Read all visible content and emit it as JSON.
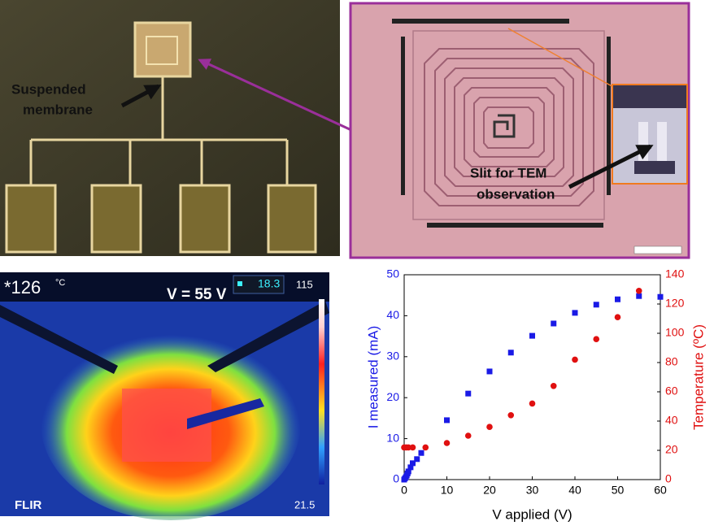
{
  "photo_chip": {
    "label_lines": [
      "Suspended",
      "membrane"
    ]
  },
  "photo_microscope": {
    "label_lines": [
      "Slit for TEM",
      "observation"
    ]
  },
  "thermal": {
    "temperature": "*126",
    "unit": "°C",
    "voltage": "V = 55 V",
    "spot": "18.3",
    "scale_max": "115",
    "scale_min": "21.5",
    "brand": "FLIR"
  },
  "chart_data": {
    "type": "scatter",
    "x_label": "V applied (V)",
    "y_label": "I measured (mA)",
    "y2_label": "Temperature (ºC)",
    "xlim": [
      0,
      60
    ],
    "xticks": [
      0,
      10,
      20,
      30,
      40,
      50,
      60
    ],
    "ylim": [
      0,
      50
    ],
    "yticks": [
      0,
      10,
      20,
      30,
      40,
      50
    ],
    "y2lim": [
      0,
      140
    ],
    "y2ticks": [
      0,
      20,
      40,
      60,
      80,
      100,
      120,
      140
    ],
    "series": [
      {
        "color": "#1a1ae6",
        "marker": "square",
        "x": [
          0,
          0.2,
          0.4,
          0.6,
          0.8,
          1,
          1.5,
          2,
          3,
          4,
          10,
          15,
          20,
          25,
          30,
          35,
          40,
          45,
          50,
          55,
          60
        ],
        "values": [
          0,
          0.3,
          0.6,
          1,
          1.5,
          2,
          3,
          4,
          5,
          6.5,
          14.5,
          21,
          26.4,
          31,
          35.1,
          38.1,
          40.7,
          42.7,
          44,
          44.8,
          44.6
        ]
      },
      {
        "color": "#e01010",
        "marker": "circle",
        "axis": "y2",
        "x": [
          0,
          0.5,
          1,
          2,
          5,
          10,
          15,
          20,
          25,
          30,
          35,
          40,
          45,
          50,
          55
        ],
        "values": [
          22,
          22,
          22,
          22,
          22,
          25,
          30,
          36,
          44,
          52,
          64,
          82,
          96,
          111,
          129
        ]
      }
    ]
  }
}
